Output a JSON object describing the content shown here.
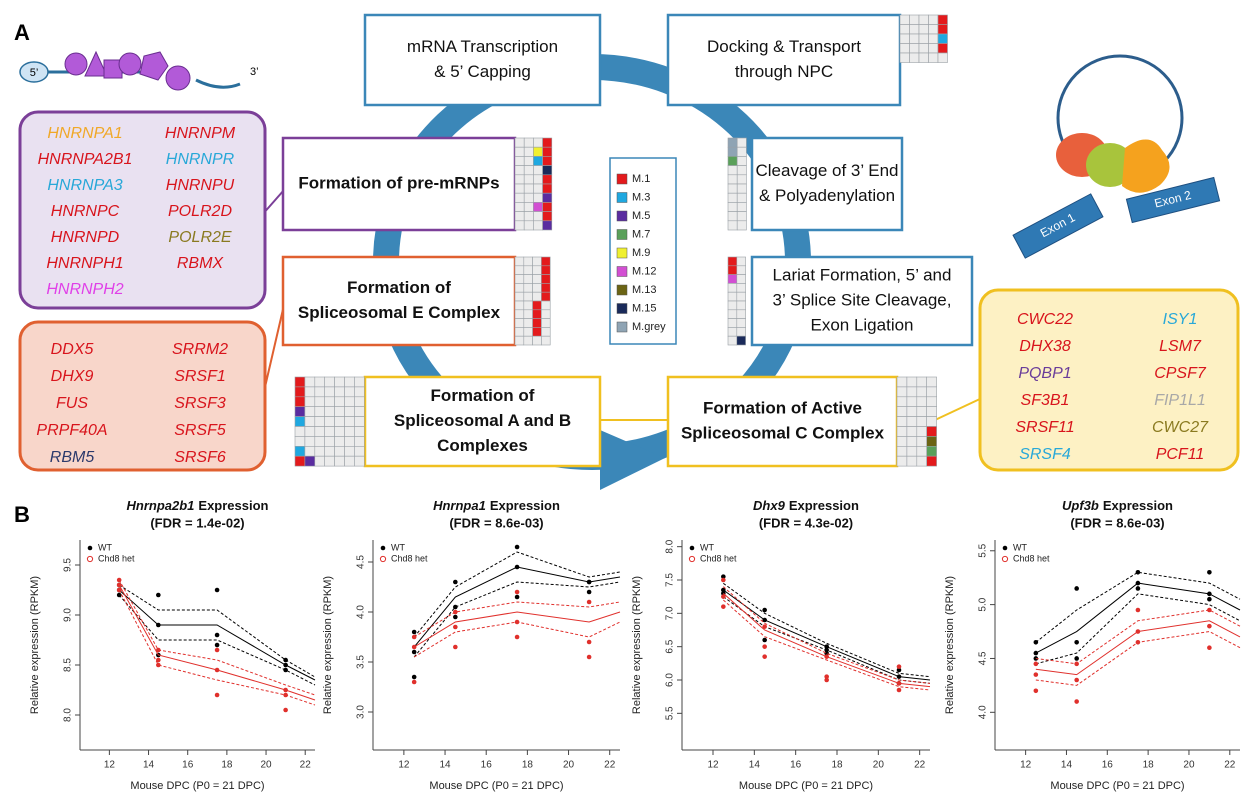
{
  "panel_a": {
    "label": "A",
    "mrna": {
      "five": "5’",
      "three": "3’"
    },
    "steps": [
      {
        "lines": [
          "mRNA Transcription",
          "& 5’ Capping"
        ]
      },
      {
        "lines": [
          "Docking & Transport",
          "through NPC"
        ]
      },
      {
        "lines": [
          "Formation of pre-mRNPs"
        ]
      },
      {
        "lines": [
          "Cleavage of 3’ End",
          "& Polyadenylation"
        ]
      },
      {
        "lines": [
          "Formation of",
          "Spliceosomal E Complex"
        ]
      },
      {
        "lines": [
          "Lariat Formation, 5’ and",
          "3’ Splice Site Cleavage,",
          "Exon Ligation"
        ]
      },
      {
        "lines": [
          "Formation of",
          "Spliceosomal A and B",
          "Complexes"
        ]
      },
      {
        "lines": [
          "Formation of Active",
          "Spliceosomal C Complex"
        ]
      }
    ],
    "modules": [
      {
        "name": "M.1",
        "color": "#e31a1c"
      },
      {
        "name": "M.3",
        "color": "#1fa8e0"
      },
      {
        "name": "M.5",
        "color": "#5a2ca0"
      },
      {
        "name": "M.7",
        "color": "#5aa05a"
      },
      {
        "name": "M.9",
        "color": "#f0f030"
      },
      {
        "name": "M.12",
        "color": "#d24fd2"
      },
      {
        "name": "M.13",
        "color": "#6b6414"
      },
      {
        "name": "M.15",
        "color": "#1a2a5a"
      },
      {
        "name": "M.grey",
        "color": "#8fa4b4"
      }
    ],
    "gene_boxes": [
      {
        "columns": [
          [
            {
              "name": "HNRNPA1",
              "color": "#f0a828"
            },
            {
              "name": "HNRNPA2B1",
              "color": "#d8141c"
            },
            {
              "name": "HNRNPA3",
              "color": "#28a8d8"
            },
            {
              "name": "HNRNPC",
              "color": "#d8141c"
            },
            {
              "name": "HNRNPD",
              "color": "#d8141c"
            },
            {
              "name": "HNRNPH1",
              "color": "#d8141c"
            },
            {
              "name": "HNRNPH2",
              "color": "#e040e8"
            }
          ],
          [
            {
              "name": "HNRNPM",
              "color": "#d8141c"
            },
            {
              "name": "HNRNPR",
              "color": "#28a8d8"
            },
            {
              "name": "HNRNPU",
              "color": "#d8141c"
            },
            {
              "name": "POLR2D",
              "color": "#d8141c"
            },
            {
              "name": "POLR2E",
              "color": "#8a7a20"
            },
            {
              "name": "RBMX",
              "color": "#d8141c"
            }
          ]
        ]
      },
      {
        "columns": [
          [
            {
              "name": "DDX5",
              "color": "#d8141c"
            },
            {
              "name": "DHX9",
              "color": "#d8141c"
            },
            {
              "name": "FUS",
              "color": "#d8141c"
            },
            {
              "name": "PRPF40A",
              "color": "#d8141c"
            },
            {
              "name": "RBM5",
              "color": "#2c3a6c"
            }
          ],
          [
            {
              "name": "SRRM2",
              "color": "#d8141c"
            },
            {
              "name": "SRSF1",
              "color": "#d8141c"
            },
            {
              "name": "SRSF3",
              "color": "#d8141c"
            },
            {
              "name": "SRSF5",
              "color": "#d8141c"
            },
            {
              "name": "SRSF6",
              "color": "#d8141c"
            }
          ]
        ]
      },
      {
        "columns": [
          [
            {
              "name": "CWC22",
              "color": "#d8141c"
            },
            {
              "name": "DHX38",
              "color": "#d8141c"
            },
            {
              "name": "PQBP1",
              "color": "#6a3d9a"
            },
            {
              "name": "SF3B1",
              "color": "#d8141c"
            },
            {
              "name": "SRSF11",
              "color": "#d8141c"
            },
            {
              "name": "SRSF4",
              "color": "#28a8d8"
            }
          ],
          [
            {
              "name": "ISY1",
              "color": "#28a8d8"
            },
            {
              "name": "LSM7",
              "color": "#d8141c"
            },
            {
              "name": "CPSF7",
              "color": "#d8141c"
            },
            {
              "name": "FIP1L1",
              "color": "#a8a8a8"
            },
            {
              "name": "CWC27",
              "color": "#8a7a20"
            },
            {
              "name": "PCF11",
              "color": "#d8141c"
            }
          ]
        ]
      }
    ],
    "exons": [
      "Exon 1",
      "Exon 2"
    ]
  },
  "panel_b": {
    "label": "B"
  },
  "chart_data": [
    {
      "type": "line",
      "title_gene": "Hnrnpa2b1",
      "title_rest": "Expression",
      "subtitle": "(FDR = 1.4e-02)",
      "x_label": "Mouse DPC (P0 = 21 DPC)",
      "y_label": "Relative expression (RPKM)",
      "x": [
        12.5,
        14.5,
        17.5,
        21,
        22.5
      ],
      "xlim": [
        10.5,
        22.5
      ],
      "xticks": [
        12,
        14,
        16,
        18,
        20,
        22
      ],
      "ylim": [
        7.65,
        9.75
      ],
      "yticks": [
        {
          "value": 8,
          "label": "8.0"
        },
        {
          "value": 8.5,
          "label": "8.5"
        },
        {
          "value": 9,
          "label": "9.0"
        },
        {
          "value": 9.5,
          "label": "9.5"
        }
      ],
      "series": [
        {
          "name": "WT",
          "color": "#000000",
          "values": [
            9.25,
            8.9,
            8.9,
            8.5,
            8.35
          ],
          "upper": [
            9.3,
            9.05,
            9.05,
            8.55,
            8.38
          ],
          "lower": [
            9.2,
            8.75,
            8.75,
            8.45,
            8.3
          ],
          "points": {
            "x": [
              12.5,
              12.5,
              12.5,
              14.5,
              14.5,
              14.5,
              17.5,
              17.5,
              17.5,
              21,
              21,
              21
            ],
            "y": [
              9.3,
              9.2,
              9.25,
              9.2,
              8.9,
              8.6,
              9.25,
              8.8,
              8.7,
              8.55,
              8.5,
              8.45
            ]
          }
        },
        {
          "name": "Chd8 het",
          "color": "#e0302c",
          "values": [
            9.3,
            8.6,
            8.45,
            8.25,
            8.15
          ],
          "upper": [
            9.35,
            8.65,
            8.55,
            8.3,
            8.2
          ],
          "lower": [
            9.25,
            8.5,
            8.35,
            8.2,
            8.1
          ],
          "points": {
            "x": [
              12.5,
              12.5,
              12.5,
              14.5,
              14.5,
              14.5,
              17.5,
              17.5,
              17.5,
              21,
              21,
              21
            ],
            "y": [
              9.35,
              9.3,
              9.25,
              8.65,
              8.55,
              8.5,
              8.65,
              8.45,
              8.2,
              8.25,
              8.2,
              8.05
            ]
          }
        }
      ]
    },
    {
      "type": "line",
      "title_gene": "Hnrnpa1",
      "title_rest": "Expression",
      "subtitle": "(FDR = 8.6e-03)",
      "x_label": "Mouse DPC (P0 = 21 DPC)",
      "y_label": "Relative expression (RPKM)",
      "x": [
        12.5,
        14.5,
        17.5,
        21,
        22.5
      ],
      "xlim": [
        10.5,
        22.5
      ],
      "xticks": [
        12,
        14,
        16,
        18,
        20,
        22
      ],
      "ylim": [
        2.62,
        4.72
      ],
      "yticks": [
        {
          "value": 3,
          "label": "3.0"
        },
        {
          "value": 3.5,
          "label": "3.5"
        },
        {
          "value": 4,
          "label": "4.0"
        },
        {
          "value": 4.5,
          "label": "4.5"
        }
      ],
      "series": [
        {
          "name": "WT",
          "color": "#000000",
          "values": [
            3.65,
            4.15,
            4.45,
            4.3,
            4.35
          ],
          "upper": [
            3.75,
            4.25,
            4.6,
            4.35,
            4.4
          ],
          "lower": [
            3.55,
            4.05,
            4.3,
            4.25,
            4.3
          ],
          "points": {
            "x": [
              12.5,
              12.5,
              12.5,
              14.5,
              14.5,
              14.5,
              17.5,
              17.5,
              17.5,
              21,
              21,
              21
            ],
            "y": [
              3.8,
              3.6,
              3.35,
              4.3,
              4.05,
              3.95,
              4.65,
              4.45,
              4.15,
              4.3,
              4.2,
              4.3
            ]
          }
        },
        {
          "name": "Chd8 het",
          "color": "#e0302c",
          "values": [
            3.65,
            3.9,
            4.0,
            3.9,
            4.0
          ],
          "upper": [
            3.75,
            4.0,
            4.1,
            4.05,
            4.1
          ],
          "lower": [
            3.55,
            3.8,
            3.9,
            3.75,
            3.9
          ],
          "points": {
            "x": [
              12.5,
              12.5,
              12.5,
              14.5,
              14.5,
              14.5,
              17.5,
              17.5,
              17.5,
              21,
              21,
              21
            ],
            "y": [
              3.75,
              3.65,
              3.3,
              4.0,
              3.85,
              3.65,
              4.2,
              3.9,
              3.75,
              4.1,
              3.7,
              3.55
            ]
          }
        }
      ]
    },
    {
      "type": "line",
      "title_gene": "Dhx9",
      "title_rest": "Expression",
      "subtitle": "(FDR = 4.3e-02)",
      "x_label": "Mouse DPC (P0 = 21 DPC)",
      "y_label": "Relative expression (RPKM)",
      "x": [
        12.5,
        14.5,
        17.5,
        21,
        22.5
      ],
      "xlim": [
        10.5,
        22.5
      ],
      "xticks": [
        12,
        14,
        16,
        18,
        20,
        22
      ],
      "ylim": [
        4.95,
        8.1
      ],
      "yticks": [
        {
          "value": 5.5,
          "label": "5.5"
        },
        {
          "value": 6,
          "label": "6.0"
        },
        {
          "value": 6.5,
          "label": "6.5"
        },
        {
          "value": 7,
          "label": "7.0"
        },
        {
          "value": 7.5,
          "label": "7.5"
        },
        {
          "value": 8,
          "label": "8.0"
        }
      ],
      "series": [
        {
          "name": "WT",
          "color": "#000000",
          "values": [
            7.35,
            6.9,
            6.5,
            6.05,
            6.0
          ],
          "upper": [
            7.45,
            7.0,
            6.55,
            6.1,
            6.05
          ],
          "lower": [
            7.25,
            6.8,
            6.45,
            6.0,
            5.95
          ],
          "points": {
            "x": [
              12.5,
              12.5,
              12.5,
              14.5,
              14.5,
              14.5,
              17.5,
              17.5,
              17.5,
              21,
              21,
              21
            ],
            "y": [
              7.55,
              7.35,
              7.3,
              7.05,
              6.9,
              6.6,
              6.5,
              6.45,
              6.4,
              6.15,
              6.05,
              5.95
            ]
          }
        },
        {
          "name": "Chd8 het",
          "color": "#e0302c",
          "values": [
            7.3,
            6.75,
            6.35,
            5.95,
            5.9
          ],
          "upper": [
            7.4,
            6.85,
            6.4,
            6.0,
            5.95
          ],
          "lower": [
            7.2,
            6.65,
            6.3,
            5.9,
            5.85
          ],
          "points": {
            "x": [
              12.5,
              12.5,
              12.5,
              14.5,
              14.5,
              14.5,
              17.5,
              17.5,
              17.5,
              21,
              21,
              21
            ],
            "y": [
              7.5,
              7.25,
              7.1,
              6.8,
              6.5,
              6.35,
              6.35,
              6.05,
              6.0,
              6.2,
              5.95,
              5.85
            ]
          }
        }
      ]
    },
    {
      "type": "line",
      "title_gene": "Upf3b",
      "title_rest": "Expression",
      "subtitle": "(FDR = 8.6e-03)",
      "x_label": "Mouse DPC (P0 = 21 DPC)",
      "y_label": "Relative expression (RPKM)",
      "x": [
        12.5,
        14.5,
        17.5,
        21,
        22.5
      ],
      "xlim": [
        10.5,
        22.5
      ],
      "xticks": [
        12,
        14,
        16,
        18,
        20,
        22
      ],
      "ylim": [
        3.65,
        5.6
      ],
      "yticks": [
        {
          "value": 4,
          "label": "4.0"
        },
        {
          "value": 4.5,
          "label": "4.5"
        },
        {
          "value": 5,
          "label": "5.0"
        },
        {
          "value": 5.5,
          "label": "5.5"
        }
      ],
      "series": [
        {
          "name": "WT",
          "color": "#000000",
          "values": [
            4.55,
            4.75,
            5.2,
            5.1,
            4.95
          ],
          "upper": [
            4.65,
            4.95,
            5.3,
            5.2,
            5.05
          ],
          "lower": [
            4.45,
            4.55,
            5.1,
            5.0,
            4.85
          ],
          "points": {
            "x": [
              12.5,
              12.5,
              12.5,
              14.5,
              14.5,
              14.5,
              17.5,
              17.5,
              17.5,
              21,
              21,
              21
            ],
            "y": [
              4.65,
              4.55,
              4.5,
              5.15,
              4.65,
              4.5,
              5.3,
              5.2,
              5.15,
              5.3,
              5.1,
              5.05
            ]
          }
        },
        {
          "name": "Chd8 het",
          "color": "#e0302c",
          "values": [
            4.4,
            4.35,
            4.75,
            4.85,
            4.7
          ],
          "upper": [
            4.5,
            4.45,
            4.85,
            4.95,
            4.8
          ],
          "lower": [
            4.3,
            4.25,
            4.65,
            4.75,
            4.6
          ],
          "points": {
            "x": [
              12.5,
              12.5,
              12.5,
              14.5,
              14.5,
              14.5,
              17.5,
              17.5,
              17.5,
              21,
              21,
              21
            ],
            "y": [
              4.45,
              4.35,
              4.2,
              4.45,
              4.3,
              4.1,
              4.95,
              4.75,
              4.65,
              4.95,
              4.8,
              4.6
            ]
          }
        }
      ]
    }
  ]
}
